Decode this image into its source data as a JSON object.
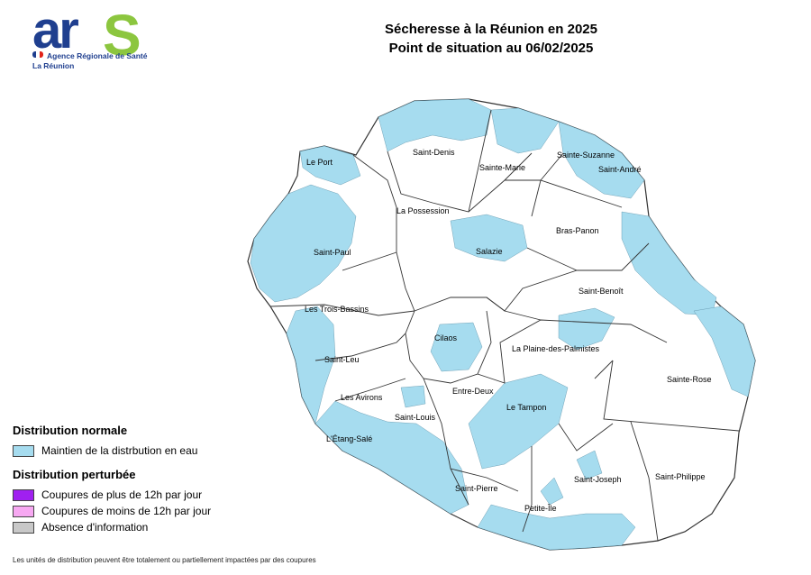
{
  "logo": {
    "brand_left": "ar",
    "brand_right": "S",
    "line1": "Agence Régionale de Santé",
    "line2": "La Réunion"
  },
  "title": {
    "line1": "Sécheresse  à la Réunion en 2025",
    "line2": "Point de situation au 06/02/2025"
  },
  "communes": [
    "Le Port",
    "Saint-Denis",
    "Sainte-Marie",
    "Sainte-Suzanne",
    "Saint-André",
    "La Possession",
    "Salazie",
    "Bras-Panon",
    "Saint-Paul",
    "Saint-Benoît",
    "Les Trois-Bassins",
    "Cilaos",
    "La Plaine-des-Palmistes",
    "Saint-Leu",
    "Sainte-Rose",
    "Entre-Deux",
    "Les Avirons",
    "Saint-Louis",
    "Le Tampon",
    "L'Étang-Salé",
    "Saint-Joseph",
    "Saint-Philippe",
    "Saint-Pierre",
    "Petite-Île"
  ],
  "legend": {
    "normal_heading": "Distribution normale",
    "normal_items": [
      {
        "label": "Maintien de la distrbution en eau",
        "color": "#a6dcef"
      }
    ],
    "disturbed_heading": "Distribution perturbée",
    "disturbed_items": [
      {
        "label": "Coupures de plus de 12h par jour",
        "color": "#a020f0"
      },
      {
        "label": "Coupures de moins de 12h par jour",
        "color": "#f7a8f2"
      },
      {
        "label": "Absence d'information",
        "color": "#c8c8c8"
      }
    ]
  },
  "footnote": "Les unités de distribution  peuvent être totalement ou partiellement impactées par des coupures",
  "colors": {
    "water": "#a6dcef",
    "outline": "#333333",
    "brand_blue": "#1f3f8f",
    "brand_green": "#8cc63f"
  }
}
